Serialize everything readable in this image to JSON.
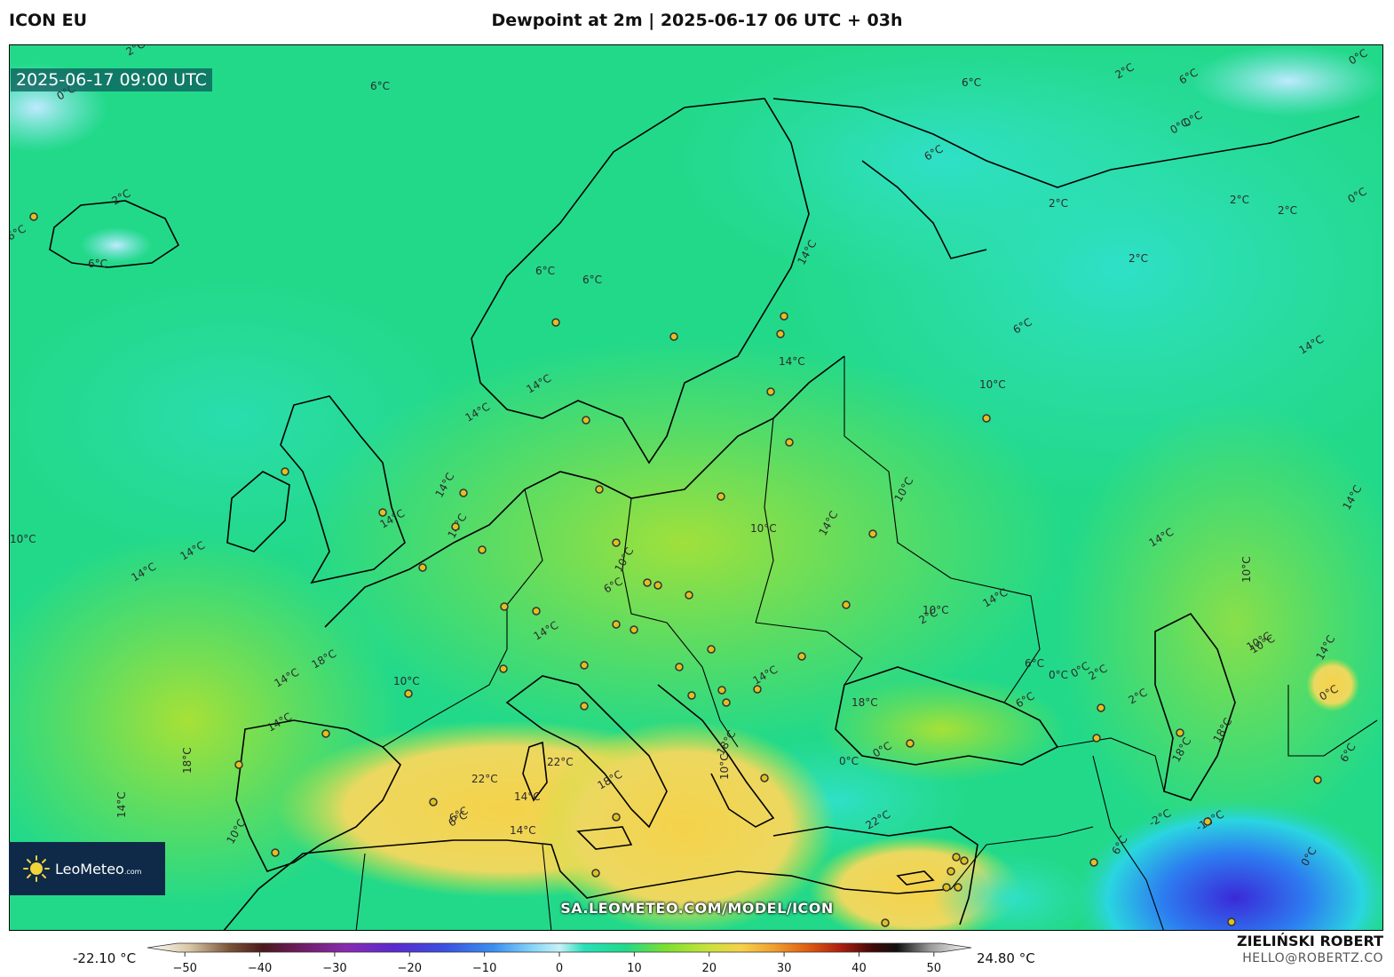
{
  "header": {
    "model": "ICON EU",
    "title": "Dewpoint at 2m | 2025-06-17 06 UTC + 03h"
  },
  "map": {
    "valid_time": "2025-06-17 09:00 UTC",
    "contour_labels": [
      "2°C",
      "0°C",
      "6°C",
      "6°C",
      "2°C",
      "6°C",
      "6°C",
      "6°C",
      "6°C",
      "6°C",
      "2°C",
      "0°C",
      "6°C",
      "0°C",
      "2°C",
      "2°C",
      "2°C",
      "0°C",
      "0°C",
      "2°C",
      "14°C",
      "14°C",
      "14°C",
      "14°C",
      "14°C",
      "14°C",
      "10°C",
      "14°C",
      "14°C",
      "14°C",
      "14°C",
      "10°C",
      "10°C",
      "6°C",
      "14°C",
      "10°C",
      "10°C",
      "14°C",
      "10°C",
      "14°C",
      "14°C",
      "18°C",
      "14°C",
      "10°C",
      "14°C",
      "18°C",
      "18°C",
      "14°C",
      "14°C",
      "22°C",
      "22°C",
      "18°C",
      "14°C",
      "6°C",
      "14°C",
      "10°C",
      "6°C",
      "2°C",
      "0°C",
      "6°C",
      "0°C",
      "2°C",
      "10°C",
      "18°C",
      "0°C",
      "6°C",
      "2°C",
      "22°C",
      "18°C",
      "14°C",
      "6°C",
      "10°C",
      "0°C",
      "10°C",
      "18°C",
      "14°C",
      "6°C",
      "0°C",
      "-2°C",
      "-10°C",
      "6°C",
      "0°C",
      "10°C"
    ]
  },
  "logo": {
    "brand": "LeoMeteo",
    "domain": ".com"
  },
  "source_url": "SA.LEOMETEO.COM/MODEL/ICON",
  "colorbar": {
    "min_label": "-22.10 °C",
    "max_label": "24.80 °C",
    "ticks": [
      "−50",
      "−40",
      "−30",
      "−20",
      "−10",
      "0",
      "10",
      "20",
      "30",
      "40",
      "50"
    ],
    "tick_values": [
      -50,
      -40,
      -30,
      -20,
      -10,
      0,
      10,
      20,
      30,
      40,
      50
    ],
    "range": [
      -55,
      55
    ]
  },
  "author": {
    "name": "ZIELIŃSKI ROBERT",
    "email": "HELLO@ROBERTZ.CO"
  }
}
